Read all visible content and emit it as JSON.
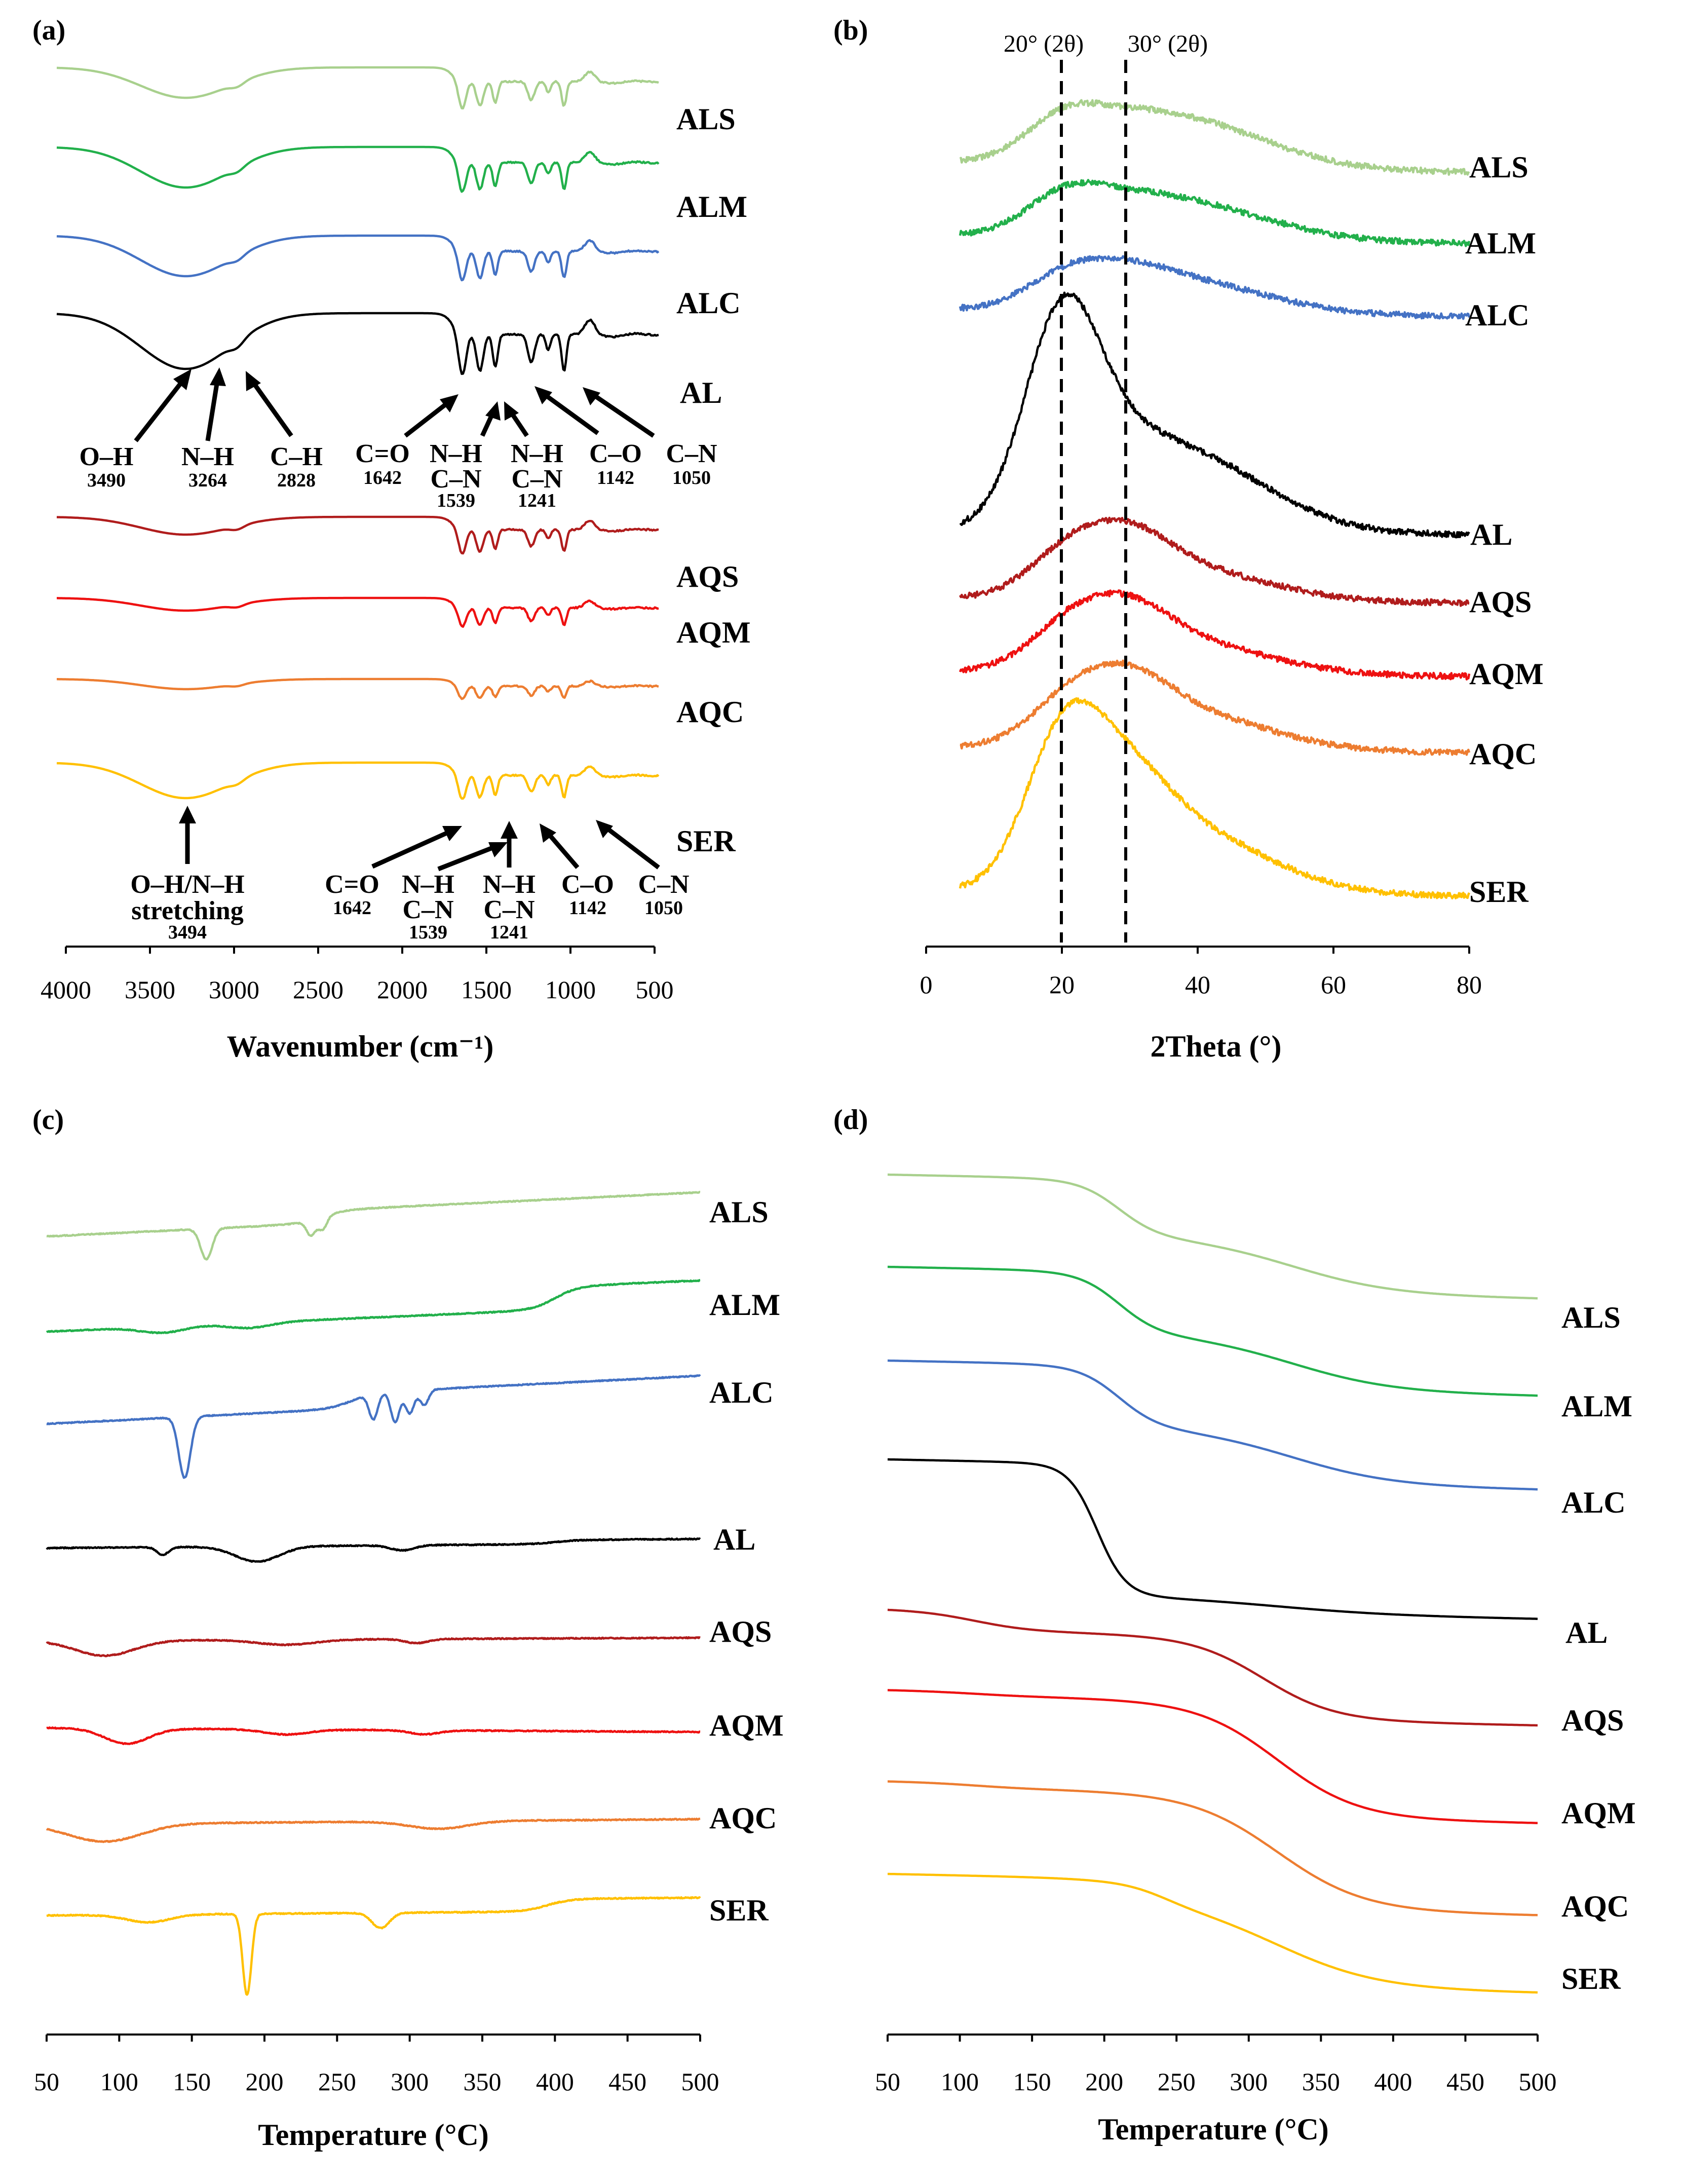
{
  "figure": {
    "colors": {
      "ALS": "#a8d08d",
      "ALM": "#22b04b",
      "ALC": "#4472c4",
      "AL": "#000000",
      "AQS": "#b01c1c",
      "AQM": "#ee1111",
      "AQC": "#ed7d31",
      "SER": "#ffc000"
    }
  },
  "chart_data": [
    {
      "id": "a",
      "panel_label": "(a)",
      "type": "line",
      "title": "",
      "xlabel": "Wavenumber (cm⁻¹)",
      "ylabel": "",
      "xlim": [
        4000,
        500
      ],
      "xticks": [
        "4000",
        "3500",
        "3000",
        "2500",
        "2000",
        "1500",
        "1000",
        "500"
      ],
      "series": [
        "ALS",
        "ALM",
        "ALC",
        "AL",
        "AQS",
        "AQM",
        "AQC",
        "SER"
      ],
      "annotations_al": [
        {
          "name": "O–H",
          "value": "3490"
        },
        {
          "name": "N–H",
          "value": "3264"
        },
        {
          "name": "C–H",
          "value": "2828"
        },
        {
          "name": "C=O",
          "value": "1642"
        },
        {
          "name": "N–H",
          "name2": "C–N",
          "value": "1539"
        },
        {
          "name": "N–H",
          "name2": "C–N",
          "value": "1241"
        },
        {
          "name": "C–O",
          "value": "1142"
        },
        {
          "name": "C–N",
          "value": "1050"
        }
      ],
      "annotations_ser": [
        {
          "name": "O–H/N–H",
          "name2": "stretching",
          "value": "3494"
        },
        {
          "name": "C=O",
          "value": "1642"
        },
        {
          "name": "N–H",
          "name2": "C–N",
          "value": "1539"
        },
        {
          "name": "N–H",
          "name2": "C–N",
          "value": "1241"
        },
        {
          "name": "C–O",
          "value": "1142"
        },
        {
          "name": "C–N",
          "value": "1050"
        }
      ]
    },
    {
      "id": "b",
      "panel_label": "(b)",
      "type": "line",
      "title": "",
      "xlabel": "2Theta (°)",
      "ylabel": "",
      "xlim": [
        0,
        80
      ],
      "xticks": [
        "0",
        "20",
        "40",
        "60",
        "80"
      ],
      "series": [
        "ALS",
        "ALM",
        "ALC",
        "AL",
        "AQS",
        "AQM",
        "AQC",
        "SER"
      ],
      "reference_lines": [
        {
          "x": 20,
          "label": "20° (2θ)"
        },
        {
          "x": 30,
          "label": "30° (2θ)"
        }
      ]
    },
    {
      "id": "c",
      "panel_label": "(c)",
      "type": "line",
      "title": "",
      "xlabel": "Temperature (°C)",
      "ylabel": "",
      "xlim": [
        50,
        500
      ],
      "xticks": [
        "50",
        "100",
        "150",
        "200",
        "250",
        "300",
        "350",
        "400",
        "450",
        "500"
      ],
      "series": [
        "ALS",
        "ALM",
        "ALC",
        "AL",
        "AQS",
        "AQM",
        "AQC",
        "SER"
      ]
    },
    {
      "id": "d",
      "panel_label": "(d)",
      "type": "line",
      "title": "",
      "xlabel": "Temperature (°C)",
      "ylabel": "",
      "xlim": [
        50,
        500
      ],
      "xticks": [
        "50",
        "100",
        "150",
        "200",
        "250",
        "300",
        "350",
        "400",
        "450",
        "500"
      ],
      "series": [
        "ALS",
        "ALM",
        "ALC",
        "AL",
        "AQS",
        "AQM",
        "AQC",
        "SER"
      ]
    }
  ]
}
